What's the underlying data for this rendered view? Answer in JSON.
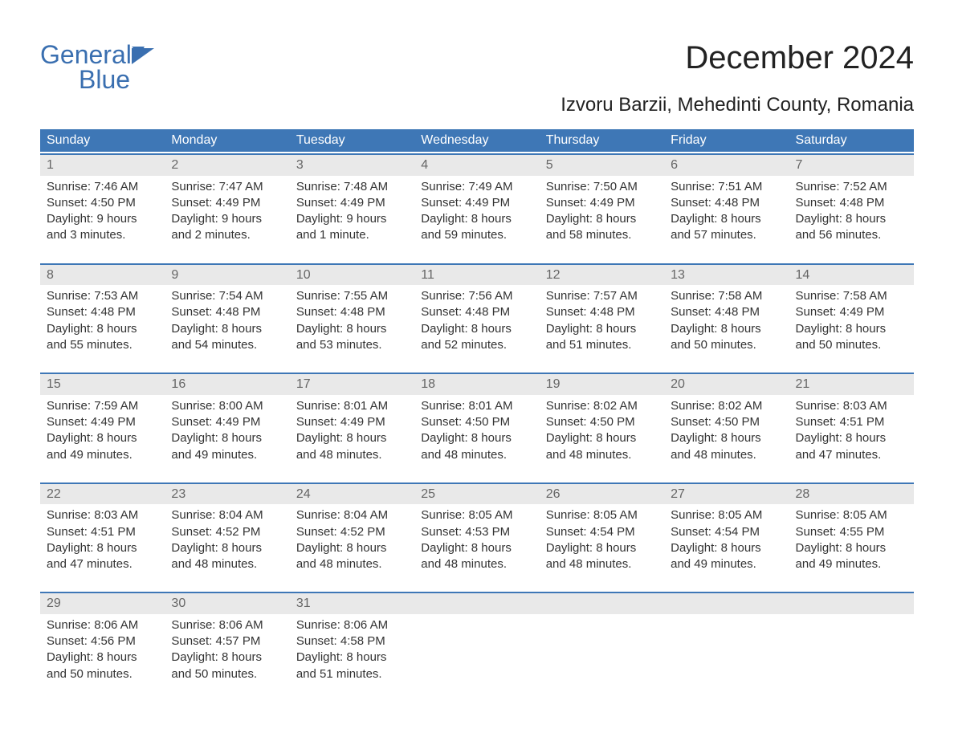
{
  "brand": {
    "word1": "General",
    "word2": "Blue",
    "text_color": "#3a6fb0",
    "flag_color": "#3a6fb0"
  },
  "header": {
    "title": "December 2024",
    "location": "Izvoru Barzii, Mehedinti County, Romania",
    "title_fontsize": 40,
    "location_fontsize": 24
  },
  "calendar": {
    "header_bg": "#3e77b6",
    "header_text_color": "#ffffff",
    "row_rule_color": "#3e77b6",
    "day_number_bg": "#e9e9e9",
    "body_text_color": "#333333",
    "body_fontsize": 15,
    "weekdays": [
      "Sunday",
      "Monday",
      "Tuesday",
      "Wednesday",
      "Thursday",
      "Friday",
      "Saturday"
    ],
    "weeks": [
      [
        {
          "n": "1",
          "sunrise": "Sunrise: 7:46 AM",
          "sunset": "Sunset: 4:50 PM",
          "d1": "Daylight: 9 hours",
          "d2": "and 3 minutes."
        },
        {
          "n": "2",
          "sunrise": "Sunrise: 7:47 AM",
          "sunset": "Sunset: 4:49 PM",
          "d1": "Daylight: 9 hours",
          "d2": "and 2 minutes."
        },
        {
          "n": "3",
          "sunrise": "Sunrise: 7:48 AM",
          "sunset": "Sunset: 4:49 PM",
          "d1": "Daylight: 9 hours",
          "d2": "and 1 minute."
        },
        {
          "n": "4",
          "sunrise": "Sunrise: 7:49 AM",
          "sunset": "Sunset: 4:49 PM",
          "d1": "Daylight: 8 hours",
          "d2": "and 59 minutes."
        },
        {
          "n": "5",
          "sunrise": "Sunrise: 7:50 AM",
          "sunset": "Sunset: 4:49 PM",
          "d1": "Daylight: 8 hours",
          "d2": "and 58 minutes."
        },
        {
          "n": "6",
          "sunrise": "Sunrise: 7:51 AM",
          "sunset": "Sunset: 4:48 PM",
          "d1": "Daylight: 8 hours",
          "d2": "and 57 minutes."
        },
        {
          "n": "7",
          "sunrise": "Sunrise: 7:52 AM",
          "sunset": "Sunset: 4:48 PM",
          "d1": "Daylight: 8 hours",
          "d2": "and 56 minutes."
        }
      ],
      [
        {
          "n": "8",
          "sunrise": "Sunrise: 7:53 AM",
          "sunset": "Sunset: 4:48 PM",
          "d1": "Daylight: 8 hours",
          "d2": "and 55 minutes."
        },
        {
          "n": "9",
          "sunrise": "Sunrise: 7:54 AM",
          "sunset": "Sunset: 4:48 PM",
          "d1": "Daylight: 8 hours",
          "d2": "and 54 minutes."
        },
        {
          "n": "10",
          "sunrise": "Sunrise: 7:55 AM",
          "sunset": "Sunset: 4:48 PM",
          "d1": "Daylight: 8 hours",
          "d2": "and 53 minutes."
        },
        {
          "n": "11",
          "sunrise": "Sunrise: 7:56 AM",
          "sunset": "Sunset: 4:48 PM",
          "d1": "Daylight: 8 hours",
          "d2": "and 52 minutes."
        },
        {
          "n": "12",
          "sunrise": "Sunrise: 7:57 AM",
          "sunset": "Sunset: 4:48 PM",
          "d1": "Daylight: 8 hours",
          "d2": "and 51 minutes."
        },
        {
          "n": "13",
          "sunrise": "Sunrise: 7:58 AM",
          "sunset": "Sunset: 4:48 PM",
          "d1": "Daylight: 8 hours",
          "d2": "and 50 minutes."
        },
        {
          "n": "14",
          "sunrise": "Sunrise: 7:58 AM",
          "sunset": "Sunset: 4:49 PM",
          "d1": "Daylight: 8 hours",
          "d2": "and 50 minutes."
        }
      ],
      [
        {
          "n": "15",
          "sunrise": "Sunrise: 7:59 AM",
          "sunset": "Sunset: 4:49 PM",
          "d1": "Daylight: 8 hours",
          "d2": "and 49 minutes."
        },
        {
          "n": "16",
          "sunrise": "Sunrise: 8:00 AM",
          "sunset": "Sunset: 4:49 PM",
          "d1": "Daylight: 8 hours",
          "d2": "and 49 minutes."
        },
        {
          "n": "17",
          "sunrise": "Sunrise: 8:01 AM",
          "sunset": "Sunset: 4:49 PM",
          "d1": "Daylight: 8 hours",
          "d2": "and 48 minutes."
        },
        {
          "n": "18",
          "sunrise": "Sunrise: 8:01 AM",
          "sunset": "Sunset: 4:50 PM",
          "d1": "Daylight: 8 hours",
          "d2": "and 48 minutes."
        },
        {
          "n": "19",
          "sunrise": "Sunrise: 8:02 AM",
          "sunset": "Sunset: 4:50 PM",
          "d1": "Daylight: 8 hours",
          "d2": "and 48 minutes."
        },
        {
          "n": "20",
          "sunrise": "Sunrise: 8:02 AM",
          "sunset": "Sunset: 4:50 PM",
          "d1": "Daylight: 8 hours",
          "d2": "and 48 minutes."
        },
        {
          "n": "21",
          "sunrise": "Sunrise: 8:03 AM",
          "sunset": "Sunset: 4:51 PM",
          "d1": "Daylight: 8 hours",
          "d2": "and 47 minutes."
        }
      ],
      [
        {
          "n": "22",
          "sunrise": "Sunrise: 8:03 AM",
          "sunset": "Sunset: 4:51 PM",
          "d1": "Daylight: 8 hours",
          "d2": "and 47 minutes."
        },
        {
          "n": "23",
          "sunrise": "Sunrise: 8:04 AM",
          "sunset": "Sunset: 4:52 PM",
          "d1": "Daylight: 8 hours",
          "d2": "and 48 minutes."
        },
        {
          "n": "24",
          "sunrise": "Sunrise: 8:04 AM",
          "sunset": "Sunset: 4:52 PM",
          "d1": "Daylight: 8 hours",
          "d2": "and 48 minutes."
        },
        {
          "n": "25",
          "sunrise": "Sunrise: 8:05 AM",
          "sunset": "Sunset: 4:53 PM",
          "d1": "Daylight: 8 hours",
          "d2": "and 48 minutes."
        },
        {
          "n": "26",
          "sunrise": "Sunrise: 8:05 AM",
          "sunset": "Sunset: 4:54 PM",
          "d1": "Daylight: 8 hours",
          "d2": "and 48 minutes."
        },
        {
          "n": "27",
          "sunrise": "Sunrise: 8:05 AM",
          "sunset": "Sunset: 4:54 PM",
          "d1": "Daylight: 8 hours",
          "d2": "and 49 minutes."
        },
        {
          "n": "28",
          "sunrise": "Sunrise: 8:05 AM",
          "sunset": "Sunset: 4:55 PM",
          "d1": "Daylight: 8 hours",
          "d2": "and 49 minutes."
        }
      ],
      [
        {
          "n": "29",
          "sunrise": "Sunrise: 8:06 AM",
          "sunset": "Sunset: 4:56 PM",
          "d1": "Daylight: 8 hours",
          "d2": "and 50 minutes."
        },
        {
          "n": "30",
          "sunrise": "Sunrise: 8:06 AM",
          "sunset": "Sunset: 4:57 PM",
          "d1": "Daylight: 8 hours",
          "d2": "and 50 minutes."
        },
        {
          "n": "31",
          "sunrise": "Sunrise: 8:06 AM",
          "sunset": "Sunset: 4:58 PM",
          "d1": "Daylight: 8 hours",
          "d2": "and 51 minutes."
        },
        {
          "empty": true
        },
        {
          "empty": true
        },
        {
          "empty": true
        },
        {
          "empty": true
        }
      ]
    ]
  }
}
